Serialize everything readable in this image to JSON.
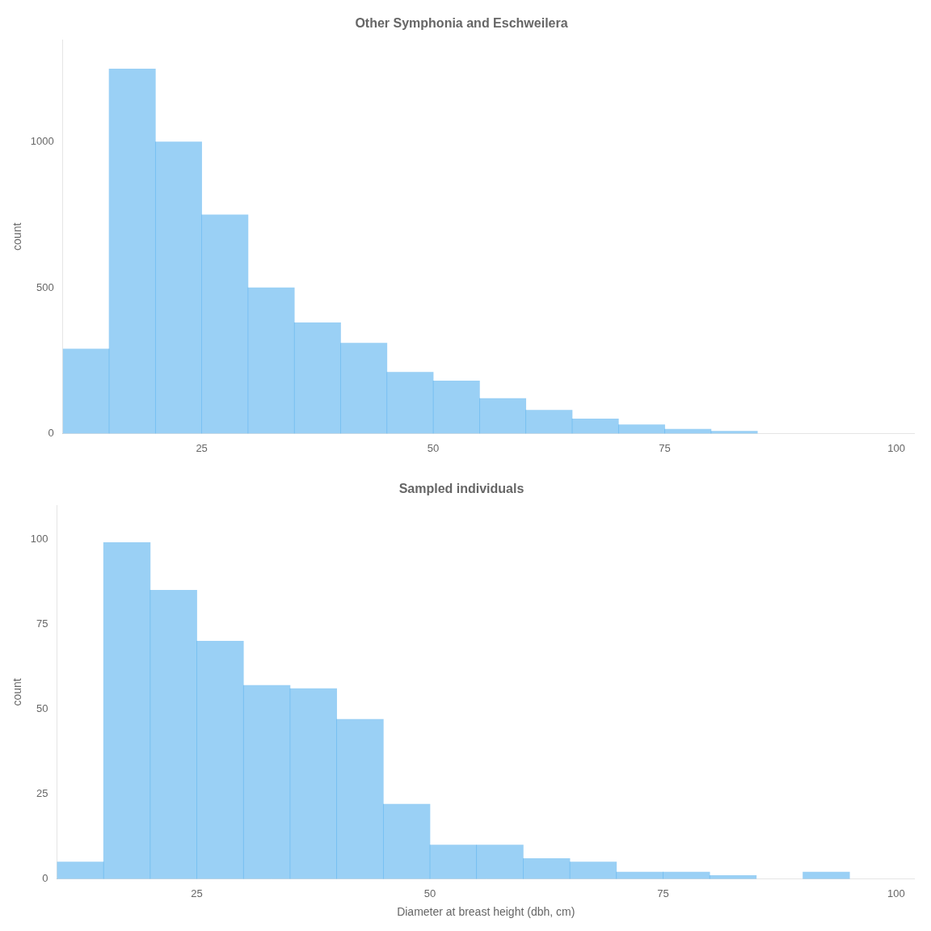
{
  "chart_data": [
    {
      "type": "histogram",
      "title": "Other Symphonia and Eschweilera",
      "ylabel": "count",
      "x": [
        10,
        15,
        20,
        25,
        30,
        35,
        40,
        45,
        50,
        55,
        60,
        65,
        70,
        75,
        80
      ],
      "bin_width": 5,
      "values": [
        290,
        1250,
        1000,
        750,
        500,
        380,
        310,
        210,
        180,
        120,
        80,
        50,
        30,
        15,
        8
      ],
      "xlim": [
        10,
        102
      ],
      "xticks": [
        25,
        50,
        75,
        100
      ],
      "ylim": [
        0,
        1350
      ],
      "yticks": [
        0,
        500,
        1000
      ],
      "grid": false
    },
    {
      "type": "histogram",
      "title": "Sampled individuals",
      "xlabel": "Diameter at breast height (dbh, cm)",
      "ylabel": "count",
      "x": [
        10,
        15,
        20,
        25,
        30,
        35,
        40,
        45,
        50,
        55,
        60,
        65,
        70,
        75,
        80,
        90
      ],
      "bin_width": 5,
      "values": [
        5,
        99,
        85,
        70,
        57,
        56,
        47,
        22,
        10,
        10,
        6,
        5,
        2,
        2,
        1,
        2
      ],
      "xlim": [
        10,
        102
      ],
      "xticks": [
        25,
        50,
        75,
        100
      ],
      "ylim": [
        0,
        110
      ],
      "yticks": [
        0,
        25,
        50,
        75,
        100
      ],
      "grid": false
    }
  ]
}
